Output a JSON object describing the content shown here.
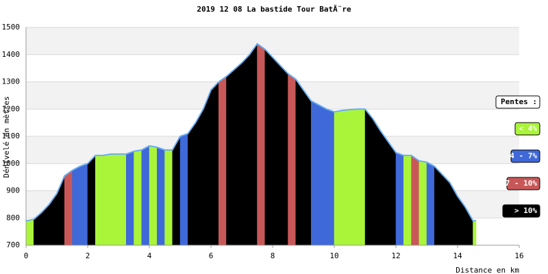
{
  "chart_data": {
    "type": "area",
    "title": "2019 12 08 La bastide Tour BatÃ¨re",
    "x_label": "Distance en km",
    "y_label": "Dénivelé en mètres",
    "legend_title": "Pentes :",
    "slope_classes": [
      {
        "label": "< 4%",
        "max": 4,
        "color": "#aaf53a"
      },
      {
        "label": "4 - 7%",
        "max": 7,
        "color": "#3f68d8"
      },
      {
        "label": "7 - 10%",
        "max": 10,
        "color": "#c85858"
      },
      {
        "label": "> 10%",
        "color": "#000000"
      }
    ],
    "line_color": "#6aaef0",
    "band_color": "#f2f2f2",
    "x": [
      0,
      0.25,
      0.5,
      0.75,
      1.0,
      1.25,
      1.5,
      1.75,
      2.0,
      2.25,
      2.5,
      2.75,
      3.0,
      3.25,
      3.5,
      3.75,
      4.0,
      4.25,
      4.5,
      4.75,
      5.0,
      5.25,
      5.5,
      5.75,
      6.0,
      6.25,
      6.5,
      6.75,
      7.0,
      7.25,
      7.5,
      7.75,
      8.0,
      8.25,
      8.5,
      8.75,
      9.0,
      9.25,
      9.5,
      9.75,
      10.0,
      10.25,
      10.5,
      10.75,
      11.0,
      11.25,
      11.5,
      11.75,
      12.0,
      12.25,
      12.5,
      12.75,
      13.0,
      13.25,
      13.5,
      13.75,
      14.0,
      14.25,
      14.5,
      14.6
    ],
    "values": [
      790,
      795,
      820,
      850,
      890,
      955,
      975,
      990,
      1000,
      1030,
      1030,
      1035,
      1035,
      1035,
      1045,
      1050,
      1065,
      1060,
      1050,
      1050,
      1100,
      1110,
      1150,
      1200,
      1270,
      1300,
      1320,
      1345,
      1370,
      1400,
      1440,
      1420,
      1390,
      1360,
      1330,
      1310,
      1270,
      1230,
      1215,
      1200,
      1190,
      1195,
      1198,
      1200,
      1200,
      1165,
      1120,
      1080,
      1040,
      1030,
      1030,
      1010,
      1005,
      990,
      960,
      930,
      880,
      840,
      790,
      790
    ],
    "xlim": [
      0,
      16
    ],
    "ylim": [
      700,
      1500
    ],
    "xticks": [
      0,
      2,
      4,
      6,
      8,
      10,
      12,
      14,
      16
    ],
    "yticks": [
      700,
      800,
      900,
      1000,
      1100,
      1200,
      1300,
      1400,
      1500
    ],
    "grid": true
  }
}
